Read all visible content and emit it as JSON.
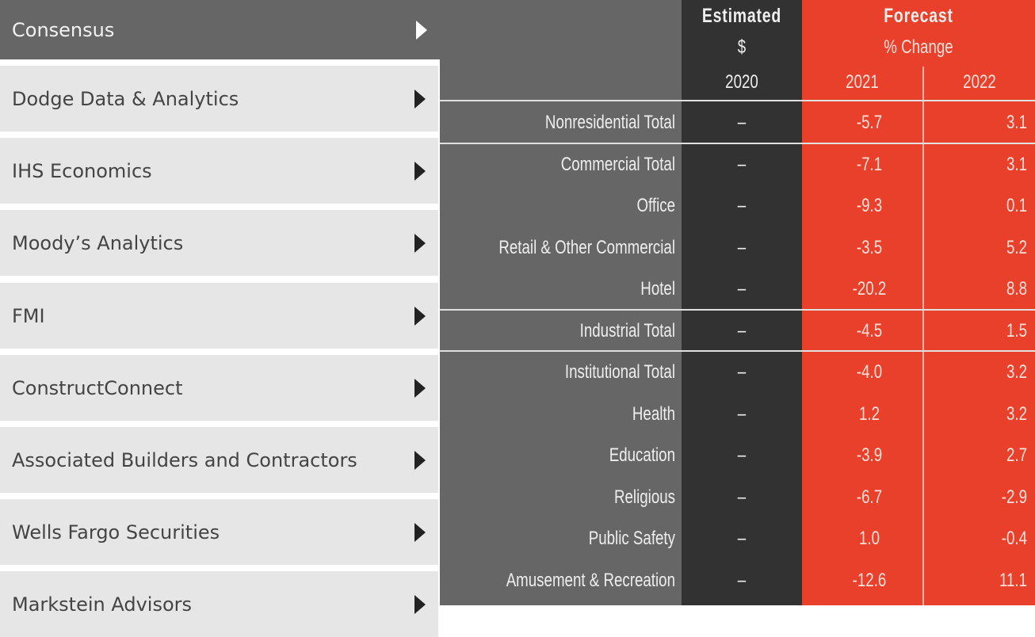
{
  "sidebar": {
    "items": [
      {
        "label": "Consensus",
        "active": true
      },
      {
        "label": "Dodge Data & Analytics"
      },
      {
        "label": "IHS Economics"
      },
      {
        "label": "Moody’s Analytics"
      },
      {
        "label": "FMI"
      },
      {
        "label": "ConstructConnect"
      },
      {
        "label": "Associated Builders and Contractors"
      },
      {
        "label": "Wells Fargo Securities"
      },
      {
        "label": "Markstein Advisors"
      }
    ]
  },
  "table": {
    "estimated_label": "Estimated",
    "estimated_unit": "$",
    "forecast_label": "Forecast",
    "forecast_unit": "% Change",
    "years": [
      "2020",
      "2021",
      "2022"
    ],
    "rows": [
      {
        "label": "Nonresidential Total",
        "est": "–",
        "y2021": "-5.7",
        "y2022": "3.1",
        "section_break": true
      },
      {
        "label": "Commercial Total",
        "est": "–",
        "y2021": "-7.1",
        "y2022": "3.1",
        "section_break": true
      },
      {
        "label": "Office",
        "est": "–",
        "y2021": "-9.3",
        "y2022": "0.1"
      },
      {
        "label": "Retail & Other Commercial",
        "est": "–",
        "y2021": "-3.5",
        "y2022": "5.2"
      },
      {
        "label": "Hotel",
        "est": "–",
        "y2021": "-20.2",
        "y2022": "8.8"
      },
      {
        "label": "Industrial Total",
        "est": "–",
        "y2021": "-4.5",
        "y2022": "1.5",
        "section_break": true
      },
      {
        "label": "Institutional Total",
        "est": "–",
        "y2021": "-4.0",
        "y2022": "3.2",
        "section_break": true
      },
      {
        "label": "Health",
        "est": "–",
        "y2021": "1.2",
        "y2022": "3.2"
      },
      {
        "label": "Education",
        "est": "–",
        "y2021": "-3.9",
        "y2022": "2.7"
      },
      {
        "label": "Religious",
        "est": "–",
        "y2021": "-6.7",
        "y2022": "-2.9"
      },
      {
        "label": "Public Safety",
        "est": "–",
        "y2021": "1.0",
        "y2022": "-0.4"
      },
      {
        "label": "Amusement & Recreation",
        "est": "–",
        "y2021": "-12.6",
        "y2022": "11.1"
      }
    ]
  },
  "colors": {
    "forecast": "#e8402a",
    "estimated": "#323232",
    "labels": "#666666",
    "sidebar_item": "#e6e6e6"
  }
}
